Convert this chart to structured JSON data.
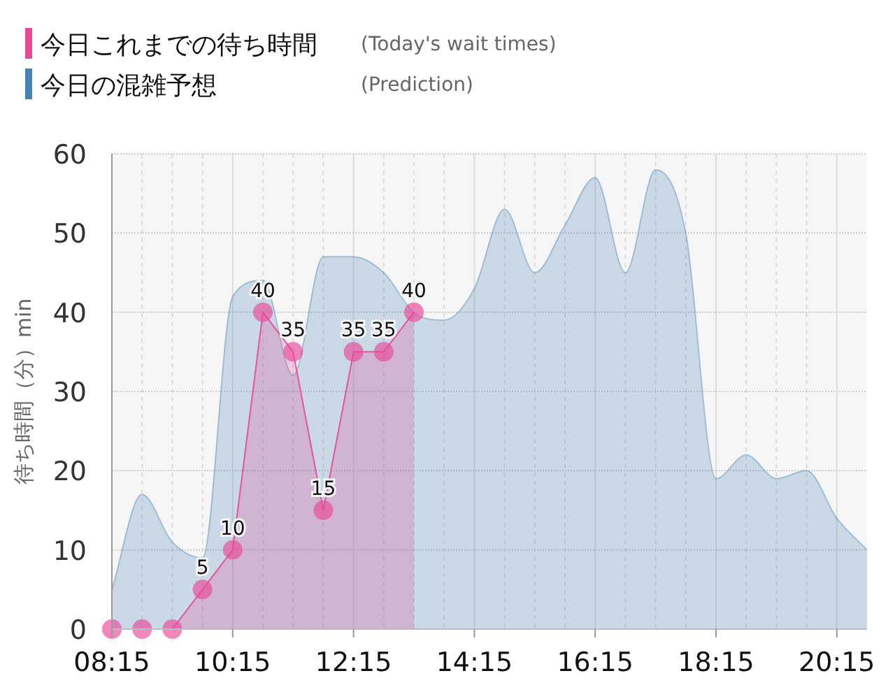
{
  "chart_data": {
    "type": "area",
    "ylabel": "待ち時間（分）min",
    "legend": "top left",
    "grid": true,
    "xlim": [
      8.25,
      20.75
    ],
    "xticks": [
      {
        "value": 8.25,
        "label": "08:15"
      },
      {
        "value": 10.25,
        "label": "10:15"
      },
      {
        "value": 12.25,
        "label": "12:15"
      },
      {
        "value": 14.25,
        "label": "14:15"
      },
      {
        "value": 16.25,
        "label": "16:15"
      },
      {
        "value": 18.25,
        "label": "18:15"
      },
      {
        "value": 20.25,
        "label": "20:15"
      }
    ],
    "ylim": [
      0,
      60
    ],
    "yticks": [
      0,
      10,
      20,
      30,
      40,
      50,
      60
    ],
    "annotations": [
      "(Today's wait times)",
      "(Prediction)"
    ],
    "series": [
      {
        "name": "今日これまでの待ち時間",
        "color": "#e8489a",
        "marker": "circle",
        "line_style": "solid",
        "x": [
          8.25,
          8.75,
          9.25,
          9.75,
          10.25,
          10.75,
          11.25,
          11.75,
          12.25,
          12.75,
          13.25
        ],
        "values": [
          0,
          0,
          0,
          5,
          10,
          40,
          35,
          15,
          35,
          35,
          40
        ],
        "value_labels": [
          null,
          null,
          null,
          "5",
          "10",
          "40",
          "35",
          "15",
          "35",
          "35",
          "40"
        ]
      },
      {
        "name": "今日の混雑予想",
        "color": "#4682b4",
        "marker": "none",
        "line_style": "solid",
        "x": [
          8.25,
          8.75,
          9.25,
          9.75,
          10.25,
          10.75,
          11.25,
          11.75,
          12.25,
          12.75,
          13.25,
          13.75,
          14.25,
          14.75,
          15.25,
          15.75,
          16.25,
          16.75,
          17.25,
          17.75,
          18.25,
          18.75,
          19.25,
          19.75,
          20.25,
          20.75
        ],
        "values": [
          5,
          17,
          11,
          9,
          42,
          44,
          32,
          47,
          47,
          45,
          40,
          39,
          43,
          53,
          45,
          51,
          57,
          45,
          58,
          50,
          19,
          22,
          19,
          20,
          14,
          10
        ]
      }
    ]
  }
}
